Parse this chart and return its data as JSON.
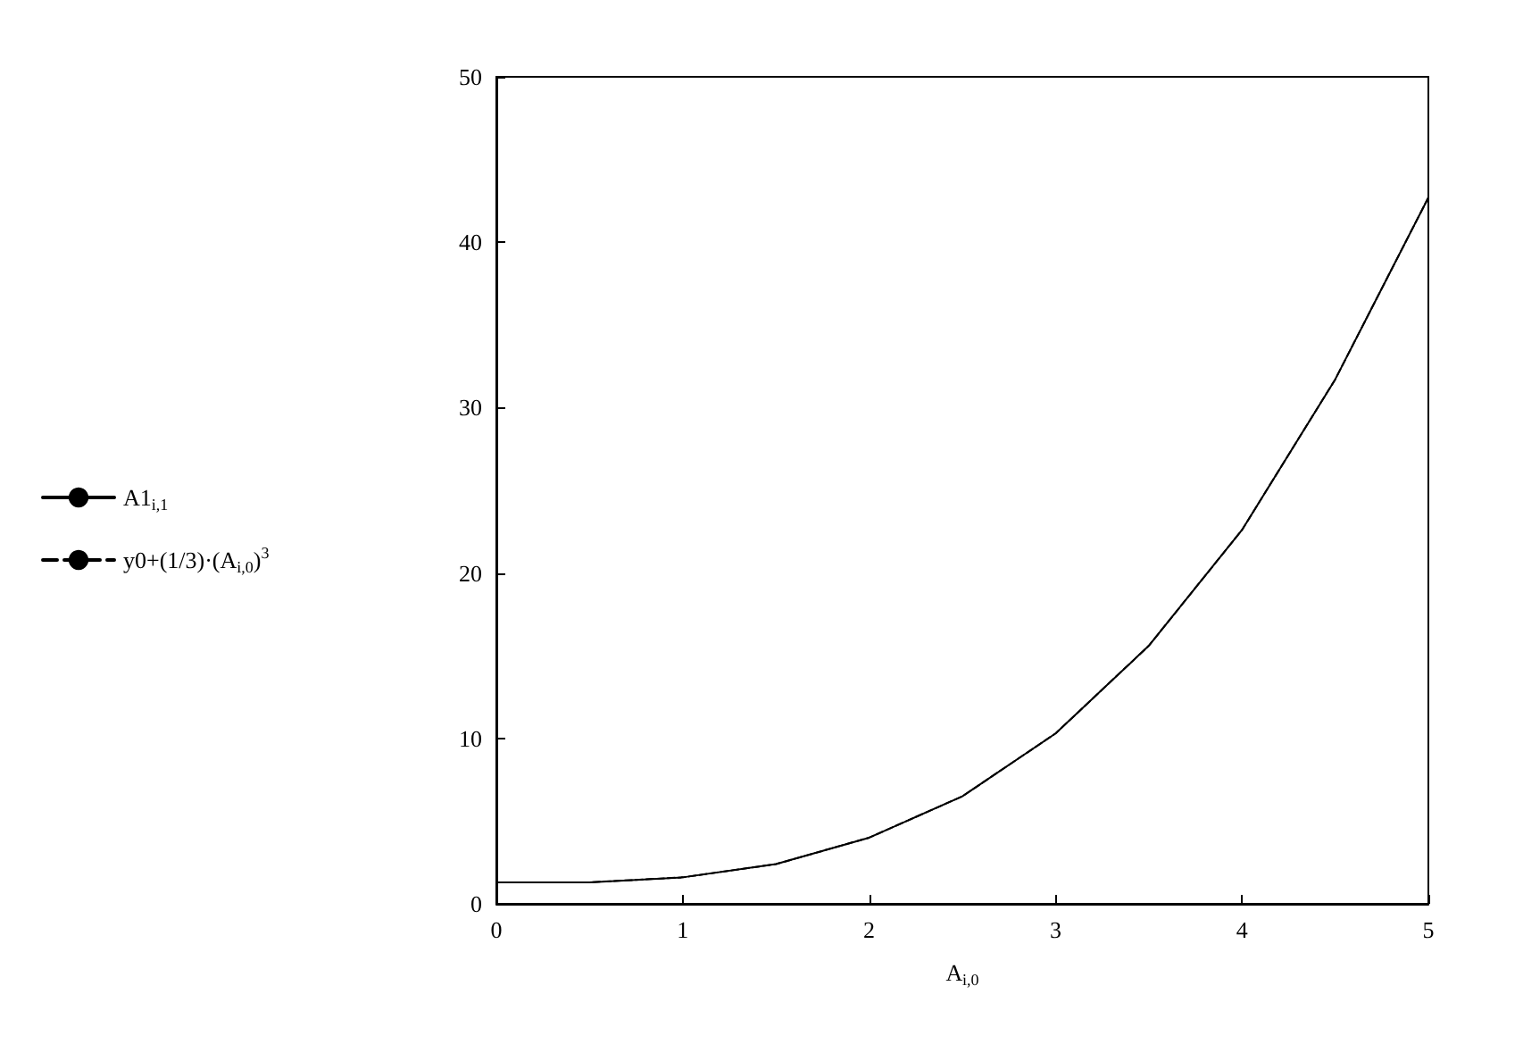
{
  "chart_data": {
    "type": "line",
    "xlabel": "A$_{i,0}$",
    "x": [
      0,
      0.5,
      1,
      1.5,
      2,
      2.5,
      3,
      3.5,
      4,
      4.5,
      5
    ],
    "series": [
      {
        "name": "A1$_{i,1}$",
        "color": "#000000",
        "line_style": "solid",
        "values": [
          1.3,
          1.3,
          1.6,
          2.4,
          4,
          6.5,
          10.3,
          15.6,
          22.6,
          31.7,
          42.7
        ]
      },
      {
        "name": "y0+(1/3)·(A$_{i,0}$)$^{3}$",
        "color": "#000000",
        "line_style": "dashed",
        "values": [
          1.3,
          1.3,
          1.6,
          2.4,
          4,
          6.5,
          10.3,
          15.6,
          22.6,
          31.7,
          42.7
        ]
      }
    ],
    "xlim": [
      0,
      5
    ],
    "xticks": [
      0,
      1,
      2,
      3,
      4,
      5
    ],
    "ylim": [
      0,
      50
    ],
    "yticks": [
      0,
      10,
      20,
      30,
      40,
      50
    ],
    "grid": false,
    "legend": "left",
    "marker": "none"
  }
}
